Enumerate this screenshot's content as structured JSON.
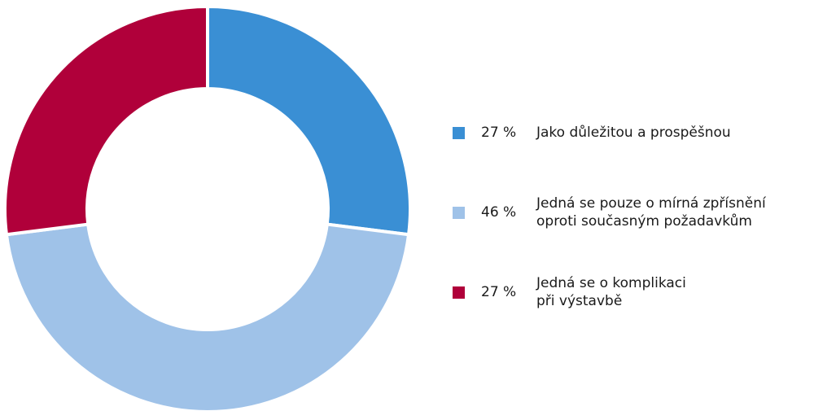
{
  "chart_data": {
    "type": "pie",
    "categories": [
      "Jako důležitou a prospěšnou",
      "Jedná se pouze o mírná zpřísnění\noproti současným požadavkům",
      "Jedná se o komplikaci\npři výstavbě"
    ],
    "values": [
      27,
      46,
      27
    ],
    "value_labels": [
      "27 %",
      "46 %",
      "27 %"
    ],
    "colors": [
      "#3a8fd4",
      "#9fc2e8",
      "#b0003a"
    ]
  }
}
